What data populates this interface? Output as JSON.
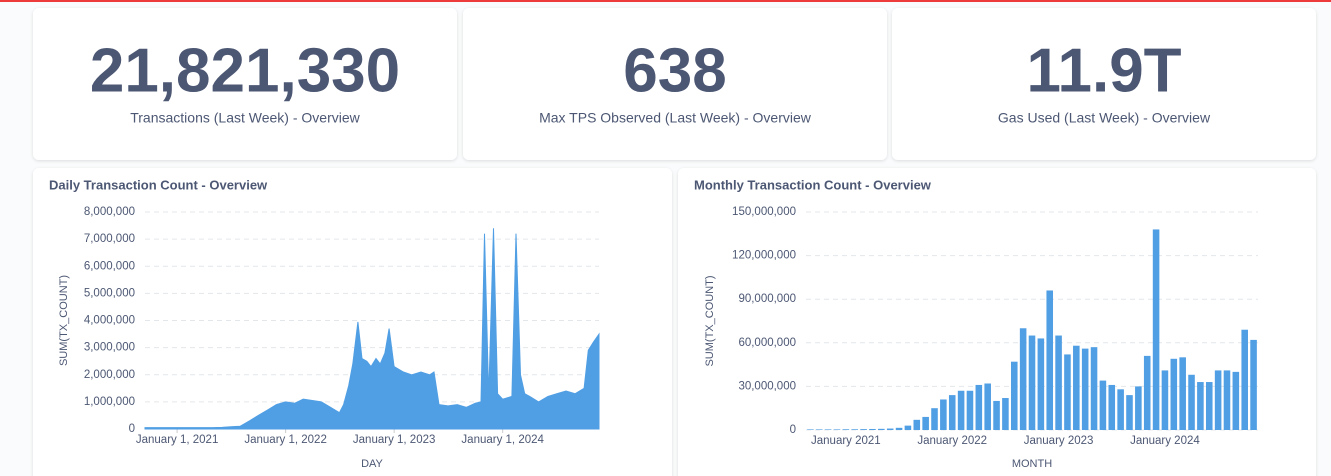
{
  "kpis": [
    {
      "value": "21,821,330",
      "label": "Transactions (Last Week) - Overview"
    },
    {
      "value": "638",
      "label": "Max TPS Observed (Last Week) - Overview"
    },
    {
      "value": "11.9T",
      "label": "Gas Used (Last Week) - Overview"
    }
  ],
  "chart_data": [
    {
      "type": "area",
      "title": "Daily Transaction Count - Overview",
      "x_label": "DAY",
      "y_label": "SUM(TX_COUNT)",
      "color": "#509ee3",
      "grid": true,
      "x": [
        "2020-09-15",
        "2020-10-01",
        "2020-11-01",
        "2020-12-01",
        "2021-01-01",
        "2021-02-01",
        "2021-03-01",
        "2021-04-01",
        "2021-05-01",
        "2021-06-01",
        "2021-07-01",
        "2021-08-01",
        "2021-09-01",
        "2021-10-01",
        "2021-11-01",
        "2021-12-01",
        "2022-01-01",
        "2022-02-01",
        "2022-03-01",
        "2022-04-01",
        "2022-05-01",
        "2022-06-01",
        "2022-07-01",
        "2022-07-15",
        "2022-08-01",
        "2022-08-15",
        "2022-09-01",
        "2022-09-15",
        "2022-10-01",
        "2022-10-15",
        "2022-11-01",
        "2022-11-15",
        "2022-12-01",
        "2022-12-15",
        "2023-01-01",
        "2023-02-01",
        "2023-03-01",
        "2023-04-01",
        "2023-05-01",
        "2023-05-15",
        "2023-06-01",
        "2023-07-01",
        "2023-08-01",
        "2023-09-01",
        "2023-10-01",
        "2023-10-20",
        "2023-11-01",
        "2023-11-15",
        "2023-12-01",
        "2023-12-15",
        "2024-01-01",
        "2024-02-01",
        "2024-02-15",
        "2024-03-01",
        "2024-03-15",
        "2024-04-01",
        "2024-05-01",
        "2024-06-01",
        "2024-07-01",
        "2024-08-01",
        "2024-09-01",
        "2024-10-01",
        "2024-10-15",
        "2024-11-01",
        "2024-11-20"
      ],
      "values": [
        50000,
        50000,
        50000,
        50000,
        50000,
        50000,
        50000,
        50000,
        50000,
        60000,
        80000,
        100000,
        300000,
        500000,
        700000,
        900000,
        1000000,
        950000,
        1100000,
        1050000,
        1000000,
        800000,
        600000,
        900000,
        1600000,
        2400000,
        3950000,
        2600000,
        2500000,
        2300000,
        2600000,
        2400000,
        2800000,
        3700000,
        2300000,
        2100000,
        2000000,
        2100000,
        2000000,
        2100000,
        900000,
        850000,
        900000,
        800000,
        950000,
        1000000,
        7200000,
        1200000,
        7400000,
        1300000,
        1100000,
        1200000,
        7200000,
        2000000,
        1300000,
        1200000,
        1000000,
        1200000,
        1300000,
        1400000,
        1300000,
        1500000,
        2900000,
        3200000,
        3500000
      ],
      "xlim": [
        "2020-09-15",
        "2024-11-20"
      ],
      "xticks": [
        {
          "value": "2021-01-01",
          "label": "January 1, 2021"
        },
        {
          "value": "2022-01-01",
          "label": "January 1, 2022"
        },
        {
          "value": "2023-01-01",
          "label": "January 1, 2023"
        },
        {
          "value": "2024-01-01",
          "label": "January 1, 2024"
        }
      ],
      "ylim": [
        0,
        8000000
      ],
      "yticks": [
        0,
        {
          "value": 1000000,
          "label": "1,000,000"
        },
        {
          "value": 2000000,
          "label": "2,000,000"
        },
        {
          "value": 3000000,
          "label": "3,000,000"
        },
        {
          "value": 4000000,
          "label": "4,000,000"
        },
        {
          "value": 5000000,
          "label": "5,000,000"
        },
        {
          "value": 6000000,
          "label": "6,000,000"
        },
        {
          "value": 7000000,
          "label": "7,000,000"
        },
        {
          "value": 8000000,
          "label": "8,000,000"
        }
      ]
    },
    {
      "type": "bar",
      "title": "Monthly Transaction Count - Overview",
      "x_label": "MONTH",
      "y_label": "SUM(TX_COUNT)",
      "color": "#509ee3",
      "grid": true,
      "categories": [
        null,
        null,
        null,
        null,
        "January 2021",
        null,
        null,
        null,
        null,
        null,
        null,
        null,
        null,
        null,
        null,
        null,
        "January 2022",
        null,
        null,
        null,
        null,
        null,
        null,
        null,
        null,
        null,
        null,
        null,
        "January 2023",
        null,
        null,
        null,
        null,
        null,
        null,
        null,
        null,
        null,
        null,
        null,
        "January 2024",
        null,
        null,
        null,
        null,
        null,
        null,
        null,
        null,
        null,
        null
      ],
      "values": [
        400000,
        400000,
        400000,
        400000,
        500000,
        500000,
        600000,
        700000,
        800000,
        1000000,
        1500000,
        3000000,
        7000000,
        9000000,
        15000000,
        21000000,
        24000000,
        27000000,
        27000000,
        31000000,
        32000000,
        20000000,
        22000000,
        47000000,
        70000000,
        65000000,
        63000000,
        96000000,
        65000000,
        52000000,
        58000000,
        56000000,
        57000000,
        34000000,
        31000000,
        28000000,
        24000000,
        30000000,
        51000000,
        138000000,
        41000000,
        49000000,
        50000000,
        38000000,
        33000000,
        33000000,
        41000000,
        41000000,
        40000000,
        69000000,
        62000000
      ],
      "ylim": [
        0,
        150000000
      ],
      "yticks": [
        0,
        {
          "value": 30000000,
          "label": "30,000,000"
        },
        {
          "value": 60000000,
          "label": "60,000,000"
        },
        {
          "value": 90000000,
          "label": "90,000,000"
        },
        {
          "value": 120000000,
          "label": "120,000,000"
        },
        {
          "value": 150000000,
          "label": "150,000,000"
        }
      ]
    }
  ]
}
